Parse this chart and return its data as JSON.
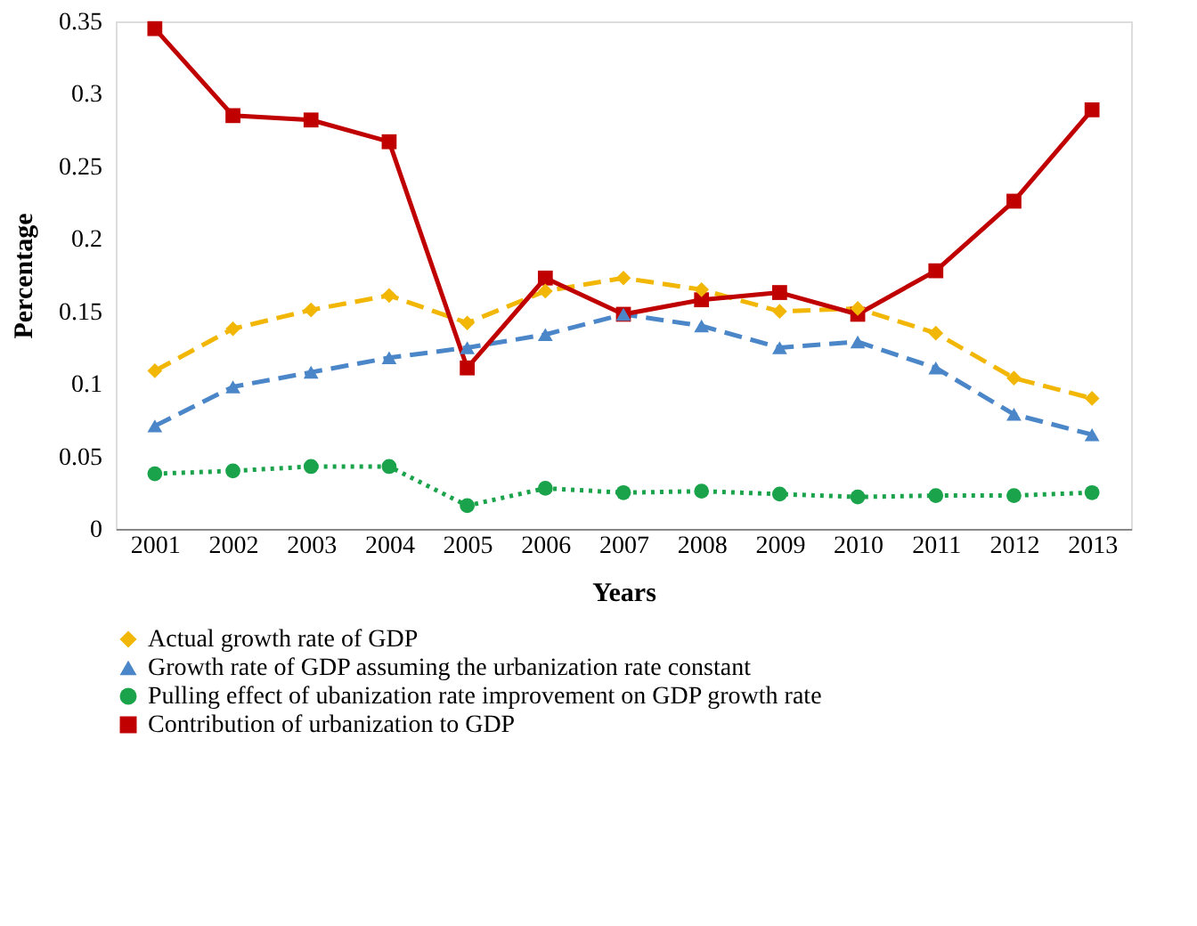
{
  "chart_data": {
    "type": "line",
    "xlabel": "Years",
    "ylabel": "Percentage",
    "categories": [
      "2001",
      "2002",
      "2003",
      "2004",
      "2005",
      "2006",
      "2007",
      "2008",
      "2009",
      "2010",
      "2011",
      "2012",
      "2013"
    ],
    "series": [
      {
        "name": "Actual growth rate of GDP",
        "color": "#f2b705",
        "marker": "diamond",
        "line_style": "dashed",
        "values": [
          0.109,
          0.138,
          0.151,
          0.161,
          0.142,
          0.164,
          0.173,
          0.165,
          0.15,
          0.152,
          0.135,
          0.104,
          0.09
        ]
      },
      {
        "name": "Growth rate of GDP assuming the urbanization rate constant",
        "color": "#4a86c8",
        "marker": "triangle",
        "line_style": "dashed",
        "values": [
          0.071,
          0.098,
          0.108,
          0.118,
          0.125,
          0.134,
          0.148,
          0.14,
          0.125,
          0.129,
          0.111,
          0.079,
          0.065
        ]
      },
      {
        "name": "Pulling effect of ubanization rate improvement on GDP growth rate",
        "color": "#1aa34a",
        "marker": "circle",
        "line_style": "dotted",
        "values": [
          0.038,
          0.04,
          0.043,
          0.043,
          0.016,
          0.028,
          0.025,
          0.026,
          0.024,
          0.022,
          0.023,
          0.023,
          0.025
        ]
      },
      {
        "name": "Contribution of urbanization to GDP",
        "color": "#c00000",
        "marker": "square",
        "line_style": "solid",
        "values": [
          0.345,
          0.285,
          0.282,
          0.267,
          0.111,
          0.173,
          0.148,
          0.158,
          0.163,
          0.148,
          0.178,
          0.226,
          0.289
        ]
      }
    ],
    "ylim": [
      0,
      0.35
    ],
    "yticks": [
      0,
      0.05,
      0.1,
      0.15,
      0.2,
      0.25,
      0.3,
      0.35
    ],
    "grid": false,
    "legend": "bottom"
  }
}
